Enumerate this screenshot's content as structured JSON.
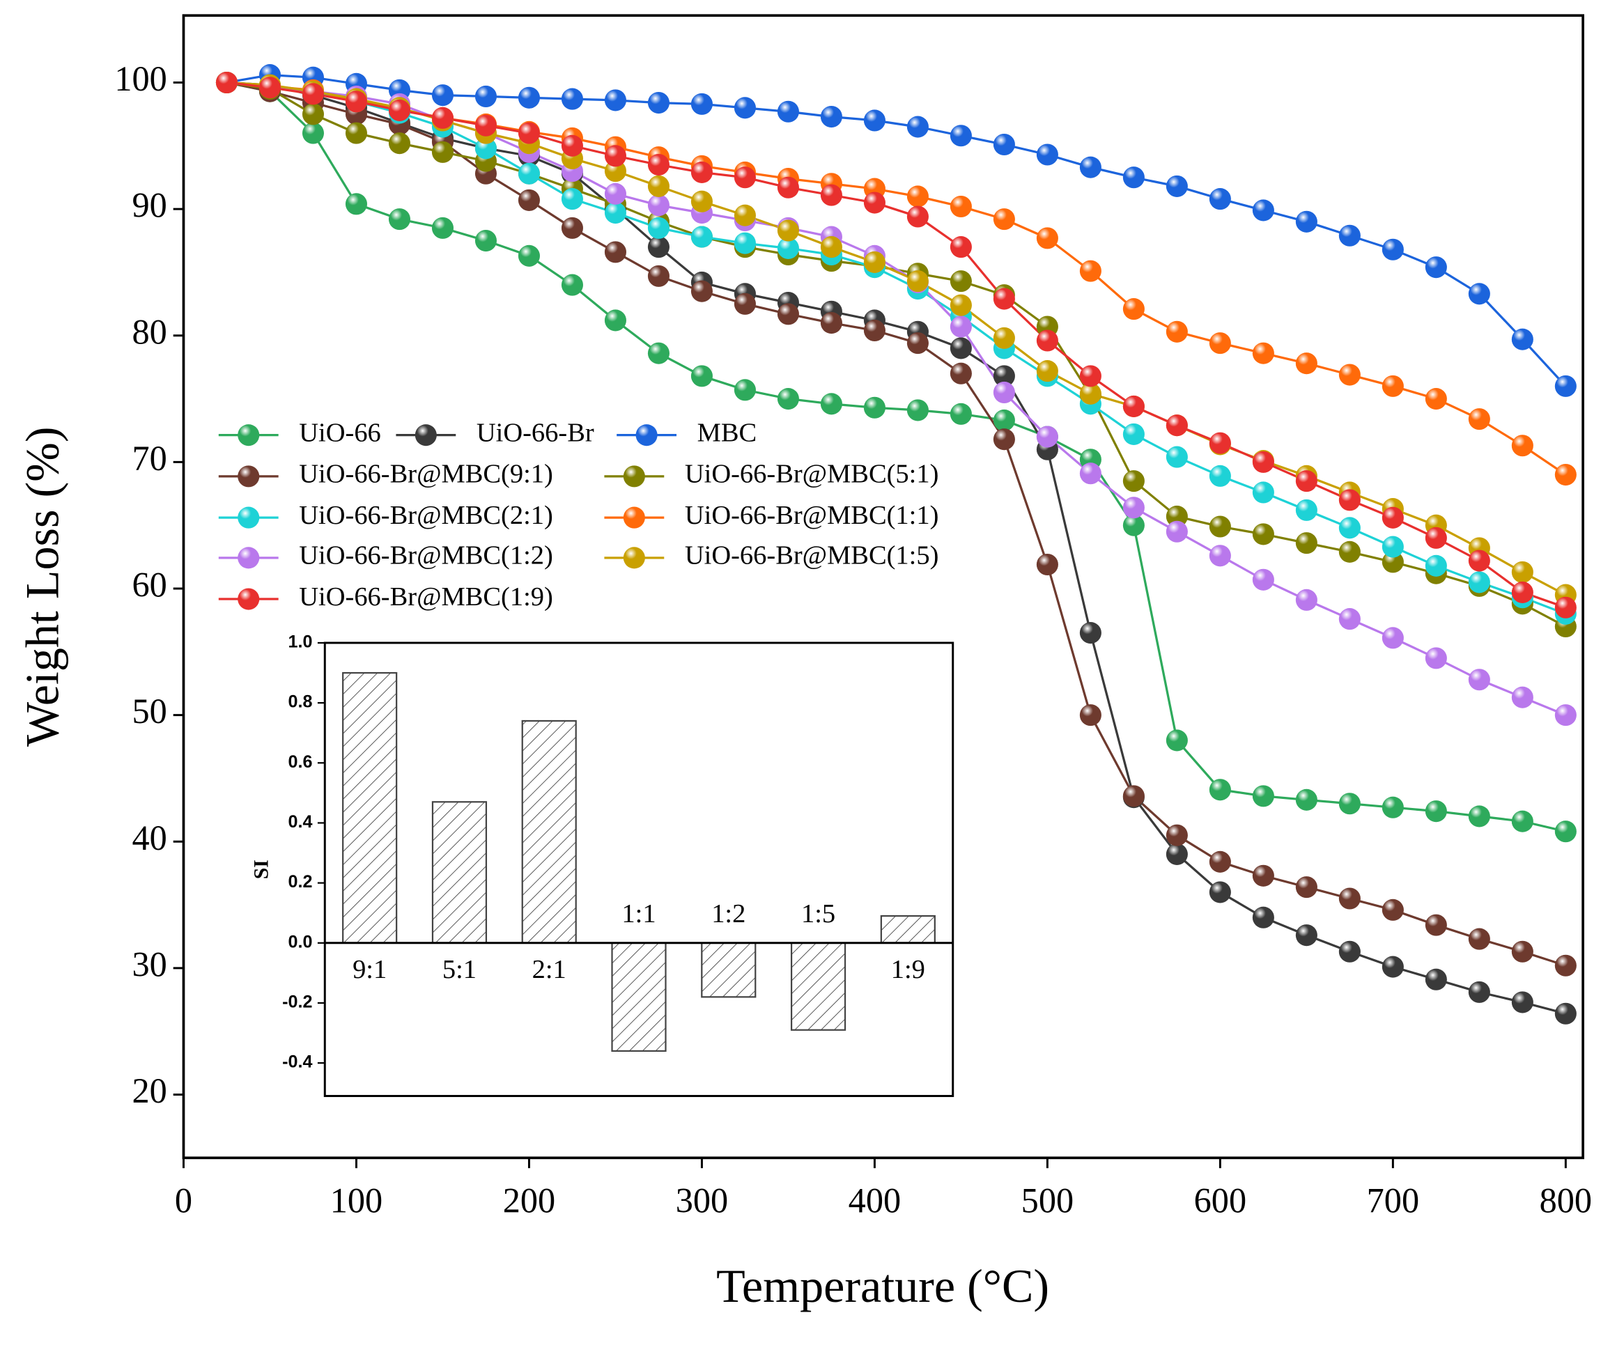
{
  "chart_data": [
    {
      "type": "line",
      "xlabel": "Temperature (°C)",
      "ylabel": "Weight Loss (%)",
      "xlim": [
        0,
        810
      ],
      "ylim": [
        15,
        105.3
      ],
      "xticks": [
        0,
        100,
        200,
        300,
        400,
        500,
        600,
        700,
        800
      ],
      "yticks": [
        20,
        30,
        40,
        50,
        60,
        70,
        80,
        90,
        100
      ],
      "x": [
        25,
        50,
        75,
        100,
        125,
        150,
        175,
        200,
        225,
        250,
        275,
        300,
        325,
        350,
        375,
        400,
        425,
        450,
        475,
        500,
        525,
        550,
        575,
        600,
        625,
        650,
        675,
        700,
        725,
        750,
        775,
        800
      ],
      "series": [
        {
          "name": "UiO-66",
          "color": "#2eaa5c",
          "values": [
            100,
            99.3,
            96,
            90.4,
            89.2,
            88.5,
            87.5,
            86.3,
            84,
            81.2,
            78.6,
            76.8,
            75.7,
            75.0,
            74.6,
            74.3,
            74.1,
            73.8,
            73.3,
            72.0,
            70.2,
            65,
            48,
            44.1,
            43.6,
            43.3,
            43.0,
            42.7,
            42.4,
            42.0,
            41.6,
            40.8
          ]
        },
        {
          "name": "UiO-66-Br",
          "color": "#3a3a3a",
          "values": [
            100,
            99.8,
            99,
            98,
            96.8,
            95.6,
            94.8,
            94.2,
            92.8,
            90,
            87,
            84.2,
            83.3,
            82.6,
            81.9,
            81.2,
            80.3,
            79,
            76.8,
            71,
            56.5,
            43.5,
            39,
            36,
            34,
            32.6,
            31.3,
            30.1,
            29.1,
            28.1,
            27.3,
            26.4
          ]
        },
        {
          "name": "MBC",
          "color": "#1c64dc",
          "values": [
            100,
            100.6,
            100.4,
            99.9,
            99.4,
            99.0,
            98.9,
            98.8,
            98.7,
            98.6,
            98.4,
            98.3,
            98.0,
            97.7,
            97.3,
            97.0,
            96.5,
            95.8,
            95.1,
            94.3,
            93.3,
            92.5,
            91.8,
            90.8,
            89.9,
            89.0,
            87.9,
            86.8,
            85.4,
            83.3,
            79.7,
            76
          ]
        },
        {
          "name": "UiO-66-Br@MBC(9:1)",
          "color": "#6e3a2e",
          "values": [
            100,
            99.3,
            98.4,
            97.5,
            96.7,
            95.3,
            92.8,
            90.7,
            88.5,
            86.6,
            84.7,
            83.5,
            82.5,
            81.7,
            81.0,
            80.4,
            79.4,
            77.0,
            71.8,
            61.9,
            50,
            43.6,
            40.5,
            38.4,
            37.3,
            36.4,
            35.5,
            34.6,
            33.4,
            32.3,
            31.3,
            30.2
          ]
        },
        {
          "name": "UiO-66-Br@MBC(5:1)",
          "color": "#808000",
          "values": [
            100,
            99.5,
            97.5,
            96,
            95.2,
            94.5,
            93.8,
            92.8,
            91.6,
            90.4,
            89,
            87.8,
            87,
            86.4,
            85.9,
            85.5,
            84.9,
            84.3,
            83.2,
            80.7,
            75.3,
            68.5,
            65.7,
            64.9,
            64.3,
            63.6,
            62.9,
            62.1,
            61.2,
            60.2,
            58.8,
            57
          ]
        },
        {
          "name": "UiO-66-Br@MBC(2:1)",
          "color": "#1ed2d6",
          "values": [
            100,
            99.7,
            99.2,
            98.5,
            97.6,
            96.5,
            94.8,
            92.8,
            90.8,
            89.7,
            88.5,
            87.8,
            87.3,
            86.9,
            86.4,
            85.4,
            83.7,
            81.5,
            79,
            76.8,
            74.6,
            72.2,
            70.4,
            68.9,
            67.6,
            66.2,
            64.8,
            63.3,
            61.8,
            60.5,
            59.3,
            58
          ]
        },
        {
          "name": "UiO-66-Br@MBC(1:1)",
          "color": "#ff6a0a",
          "values": [
            100,
            99.7,
            99.4,
            98.5,
            97.9,
            97.2,
            96.7,
            96.1,
            95.6,
            94.9,
            94.1,
            93.4,
            92.9,
            92.4,
            92.0,
            91.6,
            91.0,
            90.2,
            89.2,
            87.7,
            85.1,
            82.1,
            80.3,
            79.4,
            78.6,
            77.8,
            76.9,
            76.0,
            75.0,
            73.4,
            71.3,
            69
          ]
        },
        {
          "name": "UiO-66-Br@MBC(1:2)",
          "color": "#b978ec",
          "values": [
            100,
            99.7,
            99.3,
            98.9,
            98.3,
            97,
            96,
            94.5,
            93,
            91.2,
            90.3,
            89.7,
            89.1,
            88.5,
            87.8,
            86.3,
            84.2,
            80.7,
            75.5,
            72,
            69.1,
            66.4,
            64.5,
            62.6,
            60.7,
            59.1,
            57.6,
            56.1,
            54.5,
            52.8,
            51.4,
            50
          ]
        },
        {
          "name": "UiO-66-Br@MBC(1:5)",
          "color": "#c9a000",
          "values": [
            100,
            99.8,
            99.3,
            98.7,
            98,
            97,
            96,
            95.2,
            94,
            93,
            91.8,
            90.6,
            89.5,
            88.3,
            87,
            85.8,
            84.3,
            82.4,
            79.8,
            77.2,
            75.4,
            74.4,
            72.9,
            71.4,
            70.1,
            68.9,
            67.6,
            66.3,
            65,
            63.2,
            61.3,
            59.5
          ]
        },
        {
          "name": "UiO-66-Br@MBC(1:9)",
          "color": "#e8302e",
          "values": [
            100,
            99.6,
            99.1,
            98.5,
            97.8,
            97.2,
            96.6,
            96,
            95,
            94.2,
            93.5,
            92.9,
            92.5,
            91.7,
            91.1,
            90.5,
            89.4,
            87,
            82.9,
            79.6,
            76.8,
            74.4,
            72.9,
            71.5,
            70,
            68.5,
            67,
            65.6,
            64,
            62.2,
            59.7,
            58.5
          ]
        }
      ]
    },
    {
      "type": "bar",
      "ylabel": "SI",
      "categories": [
        "9:1",
        "5:1",
        "2:1",
        "1:1",
        "1:2",
        "1:5",
        "1:9"
      ],
      "values": [
        0.9,
        0.47,
        0.74,
        -0.36,
        -0.18,
        -0.29,
        0.09
      ],
      "ylim": [
        -0.51,
        1.0
      ],
      "yticks": [
        {
          "value": 1,
          "label": "1.0"
        },
        0.8,
        0.6,
        0.4,
        0.2,
        {
          "value": 0,
          "label": "0.0"
        },
        -0.2,
        -0.4
      ],
      "color": "#444444"
    }
  ]
}
